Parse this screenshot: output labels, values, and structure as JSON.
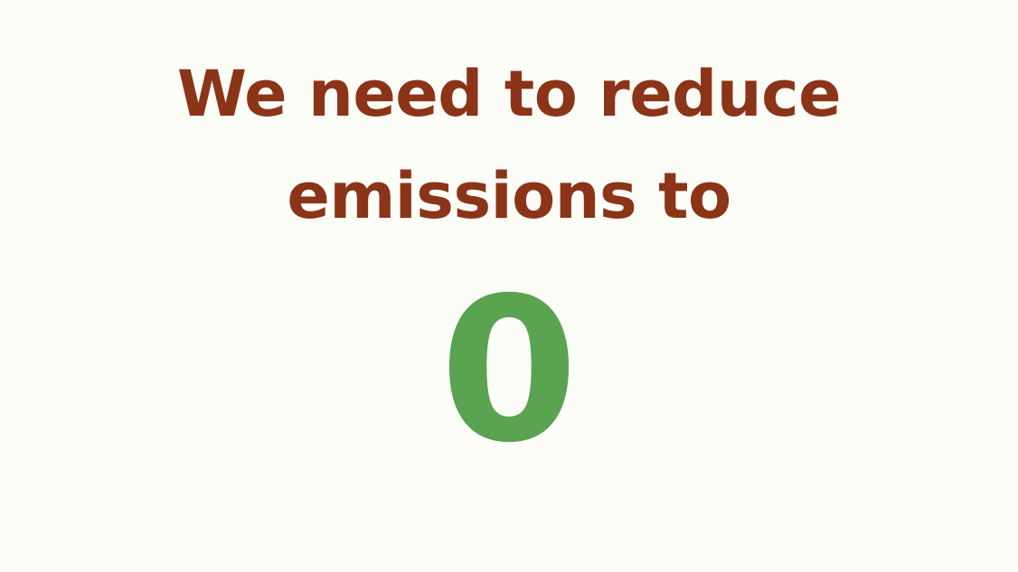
{
  "slide": {
    "headline_line1": "We need to reduce",
    "headline_line2": "emissions to",
    "number": "0"
  },
  "colors": {
    "background": "#fdfdf8",
    "headline": "#8b3417",
    "number": "#5aa351"
  }
}
